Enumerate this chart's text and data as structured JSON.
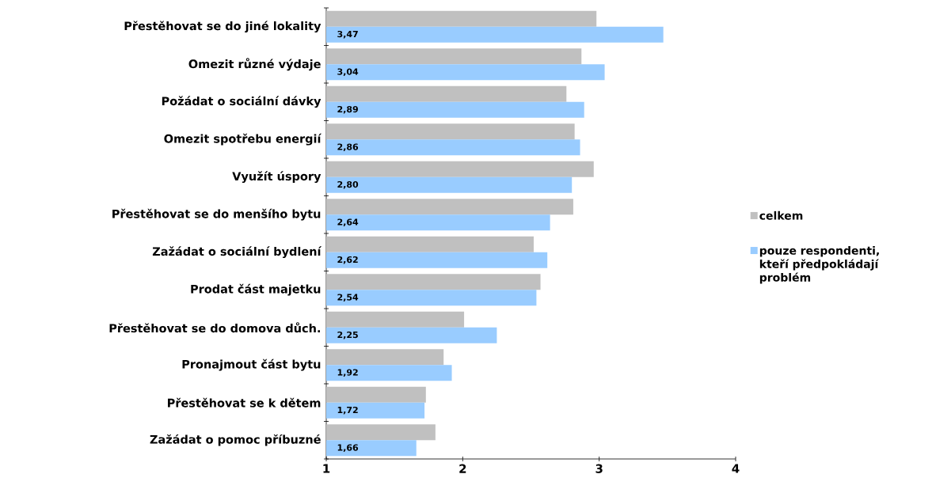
{
  "chart_data": {
    "type": "bar",
    "orientation": "horizontal",
    "categories": [
      "Přestěhovat se do jiné lokality",
      "Omezit různé výdaje",
      "Požádat o sociální dávky",
      "Omezit spotřebu energií",
      "Využít úspory",
      "Přestěhovat se do menšího bytu",
      "Zažádat o sociální bydlení",
      "Prodat část majetku",
      "Přestěhovat se do domova důch.",
      "Pronajmout část bytu",
      "Přestěhovat se k dětem",
      "Zažádat o pomoc příbuzné"
    ],
    "series": [
      {
        "name": "celkem",
        "color": "#c0c0c0",
        "values": [
          2.98,
          2.87,
          2.76,
          2.82,
          2.96,
          2.81,
          2.52,
          2.57,
          2.01,
          1.86,
          1.73,
          1.8
        ]
      },
      {
        "name": "pouze respondenti, kteří předpokládají problém",
        "color": "#99ccff",
        "values": [
          3.47,
          3.04,
          2.89,
          2.86,
          2.8,
          2.64,
          2.62,
          2.54,
          2.25,
          1.92,
          1.72,
          1.66
        ],
        "value_labels": [
          "3,47",
          "3,04",
          "2,89",
          "2,86",
          "2,80",
          "2,64",
          "2,62",
          "2,54",
          "2,25",
          "1,92",
          "1,72",
          "1,66"
        ]
      }
    ],
    "xlim": [
      1,
      4
    ],
    "xticks": [
      1,
      2,
      3,
      4
    ],
    "grid": false,
    "legend": "right"
  }
}
